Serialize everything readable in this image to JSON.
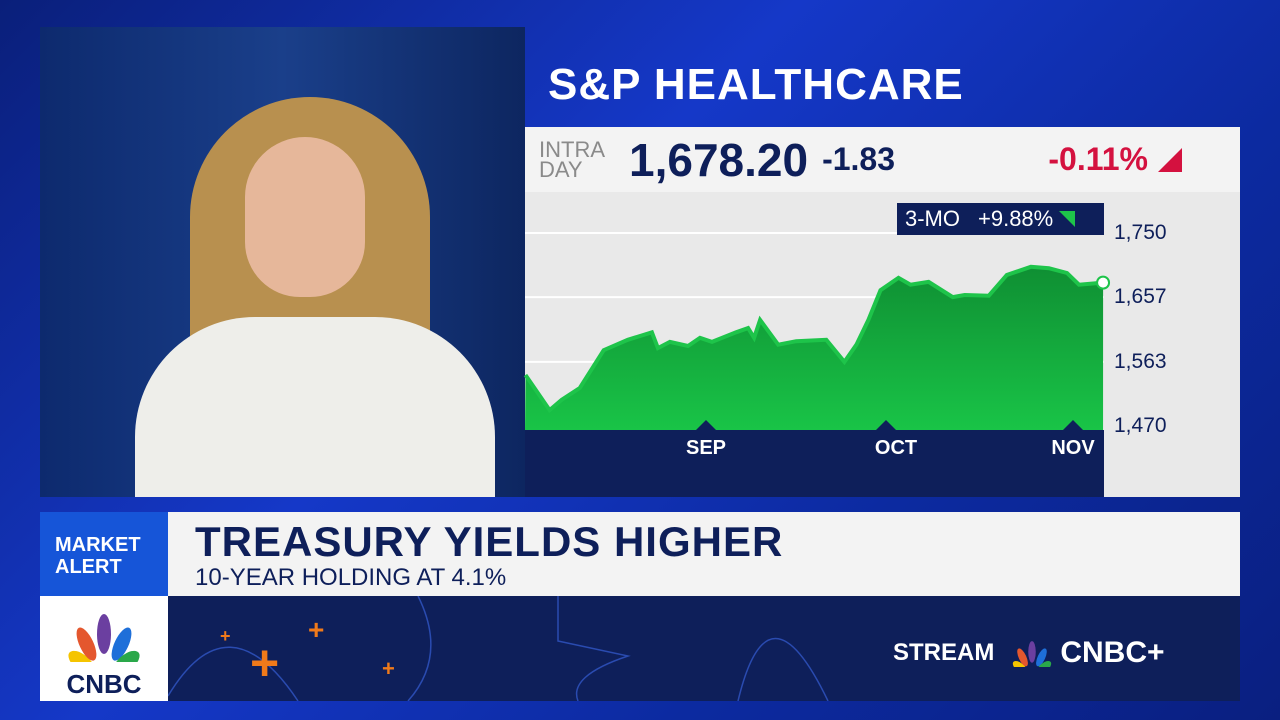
{
  "chart_title": "S&P HEALTHCARE",
  "quote": {
    "label": "INTRA DAY",
    "price": "1,678.20",
    "change": "-1.83",
    "change_pct": "-0.11%"
  },
  "badge": {
    "period": "3-MO",
    "change": "+9.88%"
  },
  "colors": {
    "navy": "#0e1f5a",
    "green": "#1ec44a",
    "red": "#d4113f",
    "alert_blue": "#1655d8"
  },
  "chart_data": {
    "type": "area",
    "title": "S&P HEALTHCARE",
    "y_ticks": [
      "1,750",
      "1,657",
      "1,563",
      "1,470"
    ],
    "x_ticks": [
      "SEP",
      "OCT",
      "NOV"
    ],
    "ylim": [
      1470,
      1750
    ],
    "grid": true,
    "points": [
      [
        "08-02",
        1544
      ],
      [
        "08-06",
        1493
      ],
      [
        "08-08",
        1508
      ],
      [
        "08-11",
        1525
      ],
      [
        "08-15",
        1580
      ],
      [
        "08-19",
        1595
      ],
      [
        "08-23",
        1606
      ],
      [
        "08-24",
        1583
      ],
      [
        "08-26",
        1592
      ],
      [
        "08-29",
        1586
      ],
      [
        "08-31",
        1598
      ],
      [
        "09-02",
        1592
      ],
      [
        "09-06",
        1606
      ],
      [
        "09-08",
        1612
      ],
      [
        "09-09",
        1598
      ],
      [
        "09-10",
        1624
      ],
      [
        "09-13",
        1588
      ],
      [
        "09-16",
        1593
      ],
      [
        "09-21",
        1595
      ],
      [
        "09-24",
        1563
      ],
      [
        "09-26",
        1588
      ],
      [
        "09-28",
        1624
      ],
      [
        "09-30",
        1667
      ],
      [
        "10-03",
        1685
      ],
      [
        "10-05",
        1675
      ],
      [
        "10-08",
        1679
      ],
      [
        "10-12",
        1657
      ],
      [
        "10-14",
        1660
      ],
      [
        "10-18",
        1659
      ],
      [
        "10-21",
        1689
      ],
      [
        "10-25",
        1701
      ],
      [
        "10-28",
        1699
      ],
      [
        "10-31",
        1692
      ],
      [
        "11-02",
        1675
      ],
      [
        "11-06",
        1678
      ]
    ]
  },
  "ticker": {
    "tag": "MARKET ALERT",
    "headline": "TREASURY YIELDS HIGHER",
    "subhead": "10-YEAR HOLDING AT 4.1%"
  },
  "logo": "CNBC",
  "promo": {
    "stream": "STREAM",
    "brand": "CNBC+"
  }
}
